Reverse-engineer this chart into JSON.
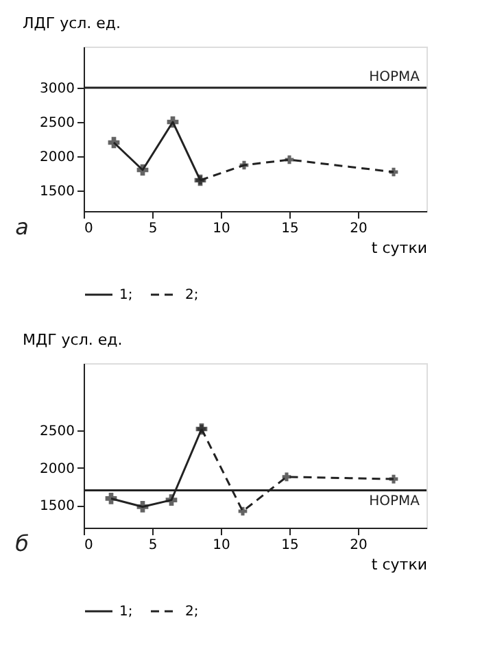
{
  "chart_data": [
    {
      "type": "line",
      "ylabel": "ЛДГ усл. ед.",
      "xlabel": "t сутки",
      "annotations": [
        "а"
      ],
      "xlim": [
        0,
        25
      ],
      "xticks": [
        0,
        5,
        10,
        15,
        20
      ],
      "ylim": [
        1200,
        3600
      ],
      "yticks": [
        1500,
        2000,
        2500,
        3000
      ],
      "grid": false,
      "legend": "bottom",
      "marker": "cross",
      "series": [
        {
          "name": "1;",
          "color": "#222222",
          "line_style": "solid",
          "x": [
            2.2,
            4.3,
            6.5,
            8.5
          ],
          "values": [
            2200,
            1800,
            2500,
            1650
          ]
        },
        {
          "name": "2;",
          "color": "#222222",
          "line_style": "dashed",
          "x": [
            8.5,
            11.7,
            15,
            22.6
          ],
          "values": [
            1650,
            1870,
            1950,
            1770
          ]
        }
      ],
      "ref_lines": [
        {
          "axis": "y",
          "value": 3000,
          "label": "НОРМА",
          "color": "#222222",
          "line_style": "solid"
        }
      ]
    },
    {
      "type": "line",
      "ylabel": "МДГ усл. ед.",
      "xlabel": "t сутки",
      "annotations": [
        "б"
      ],
      "xlim": [
        0,
        25
      ],
      "xticks": [
        0,
        5,
        10,
        15,
        20
      ],
      "ylim": [
        1200,
        3400
      ],
      "yticks": [
        1500,
        2000,
        2500
      ],
      "grid": false,
      "legend": "bottom",
      "marker": "cross",
      "series": [
        {
          "name": "1;",
          "color": "#222222",
          "line_style": "solid",
          "x": [
            2.0,
            4.3,
            6.4,
            8.6
          ],
          "values": [
            1590,
            1480,
            1570,
            2520
          ]
        },
        {
          "name": "2;",
          "color": "#222222",
          "line_style": "dashed",
          "x": [
            8.6,
            11.6,
            14.8,
            22.6
          ],
          "values": [
            2520,
            1420,
            1880,
            1850
          ]
        }
      ],
      "ref_lines": [
        {
          "axis": "y",
          "value": 1700,
          "label": "НОРМА",
          "color": "#222222",
          "line_style": "solid"
        }
      ]
    }
  ]
}
